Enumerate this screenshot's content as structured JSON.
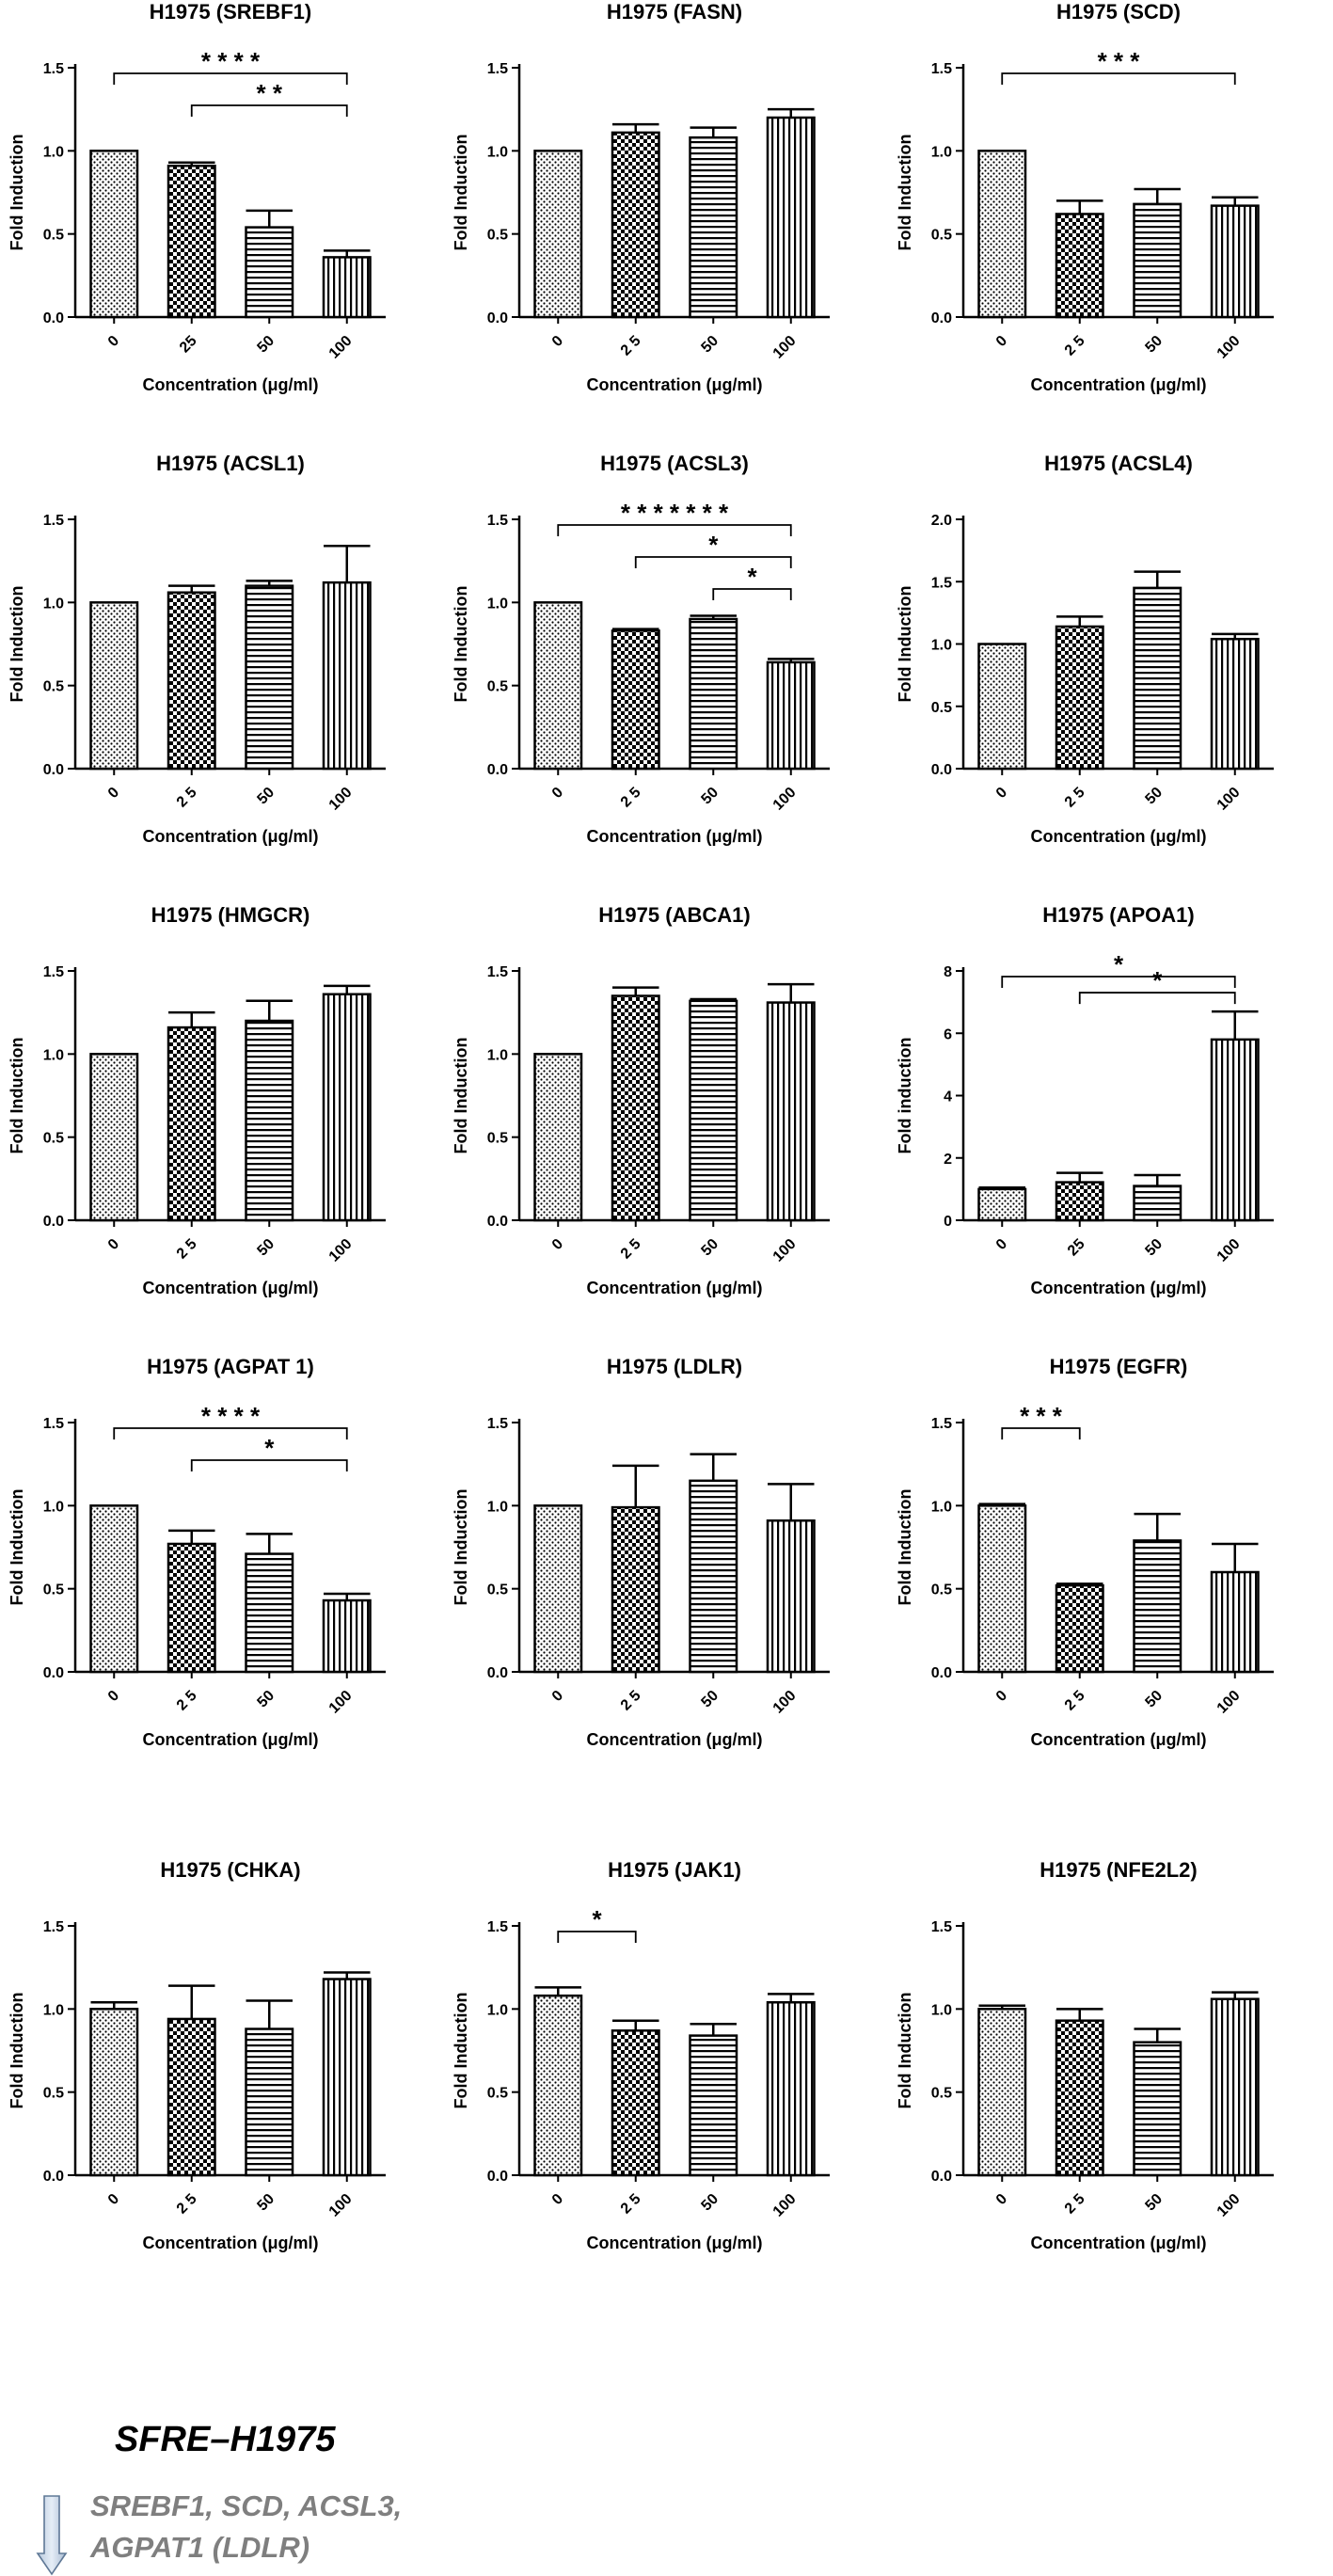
{
  "chart_data": [
    {
      "type": "bar",
      "title": "H1975  (SREBF1)",
      "xlabel": "Concentration (μg/ml)",
      "ylabel": "Fold Induction",
      "categories": [
        "0",
        "25",
        "50",
        "100"
      ],
      "values": [
        1.0,
        0.91,
        0.54,
        0.36
      ],
      "errors": [
        0,
        0.02,
        0.1,
        0.04
      ],
      "ylim": [
        0,
        1.5
      ],
      "yticks": [
        "0.0",
        "0.5",
        "1.0",
        "1.5"
      ],
      "brackets": [
        {
          "from": 0,
          "to": 3,
          "label": "*     * * *"
        },
        {
          "from": 1,
          "to": 3,
          "label": "* *"
        }
      ]
    },
    {
      "type": "bar",
      "title": "H1975 (FASN)",
      "xlabel": "Concentration (μg/ml)",
      "ylabel": "Fold Induction",
      "categories": [
        "0",
        "2 5",
        "50",
        "100"
      ],
      "values": [
        1.0,
        1.11,
        1.08,
        1.2
      ],
      "errors": [
        0,
        0.05,
        0.06,
        0.05
      ],
      "ylim": [
        0,
        1.5
      ],
      "yticks": [
        "0.0",
        "0.5",
        "1.0",
        "1.5"
      ],
      "brackets": []
    },
    {
      "type": "bar",
      "title": "H1975 (SCD)",
      "xlabel": "Concentration (μg/ml)",
      "ylabel": "Fold Induction",
      "categories": [
        "0",
        "2 5",
        "50",
        "100"
      ],
      "values": [
        1.0,
        0.62,
        0.68,
        0.67
      ],
      "errors": [
        0,
        0.08,
        0.09,
        0.05
      ],
      "ylim": [
        0,
        1.5
      ],
      "yticks": [
        "0.0",
        "0.5",
        "1.0",
        "1.5"
      ],
      "brackets": [
        {
          "from": 0,
          "to": 3,
          "label": "*           * *"
        }
      ]
    },
    {
      "type": "bar",
      "title": "H1975 (ACSL1)",
      "xlabel": "Concentration (μg/ml)",
      "ylabel": "Fold Induction",
      "categories": [
        "0",
        "2 5",
        "50",
        "100"
      ],
      "values": [
        1.0,
        1.06,
        1.1,
        1.12
      ],
      "errors": [
        0,
        0.04,
        0.03,
        0.22
      ],
      "ylim": [
        0,
        1.5
      ],
      "yticks": [
        "0.0",
        "0.5",
        "1.0",
        "1.5"
      ],
      "brackets": []
    },
    {
      "type": "bar",
      "title": "H1975 (ACSL3)",
      "xlabel": "Concentration (μg/ml)",
      "ylabel": "Fold Induction",
      "categories": [
        "0",
        "2 5",
        "50",
        "100"
      ],
      "values": [
        1.0,
        0.83,
        0.9,
        0.64
      ],
      "errors": [
        0,
        0.01,
        0.02,
        0.02
      ],
      "ylim": [
        0,
        1.5
      ],
      "yticks": [
        "0.0",
        "0.5",
        "1.0",
        "1.5"
      ],
      "brackets": [
        {
          "from": 0,
          "to": 3,
          "label": "* * *     *     * * *"
        },
        {
          "from": 1,
          "to": 3,
          "label": "*"
        },
        {
          "from": 2,
          "to": 3,
          "label": "*"
        }
      ]
    },
    {
      "type": "bar",
      "title": "H1975 (ACSL4)",
      "xlabel": "Concentration (μg/ml)",
      "ylabel": "Fold Induction",
      "categories": [
        "0",
        "2 5",
        "50",
        "100"
      ],
      "values": [
        1.0,
        1.14,
        1.45,
        1.04
      ],
      "errors": [
        0,
        0.08,
        0.13,
        0.04
      ],
      "ylim": [
        0,
        2.0
      ],
      "yticks": [
        "0.0",
        "0.5",
        "1.0",
        "1.5",
        "2.0"
      ],
      "brackets": []
    },
    {
      "type": "bar",
      "title": "H1975  (HMGCR)",
      "xlabel": "Concentration (μg/ml)",
      "ylabel": "Fold Induction",
      "categories": [
        "0",
        "2 5",
        "50",
        "100"
      ],
      "values": [
        1.0,
        1.16,
        1.2,
        1.36
      ],
      "errors": [
        0,
        0.09,
        0.12,
        0.05
      ],
      "ylim": [
        0,
        1.5
      ],
      "yticks": [
        "0.0",
        "0.5",
        "1.0",
        "1.5"
      ],
      "brackets": []
    },
    {
      "type": "bar",
      "title": "H1975 (ABCA1)",
      "xlabel": "Concentration (μg/ml)",
      "ylabel": "Fold Induction",
      "categories": [
        "0",
        "2 5",
        "50",
        "100"
      ],
      "values": [
        1.0,
        1.35,
        1.32,
        1.31
      ],
      "errors": [
        0,
        0.05,
        0.01,
        0.11
      ],
      "ylim": [
        0,
        1.5
      ],
      "yticks": [
        "0.0",
        "0.5",
        "1.0",
        "1.5"
      ],
      "brackets": []
    },
    {
      "type": "bar",
      "title": "H1975 (APOA1)",
      "xlabel": "Concentration (μg/ml)",
      "ylabel": "Fold induction",
      "categories": [
        "0",
        "25",
        "50",
        "100"
      ],
      "values": [
        1.0,
        1.22,
        1.1,
        5.8
      ],
      "errors": [
        0.05,
        0.3,
        0.35,
        0.9
      ],
      "ylim": [
        0,
        8
      ],
      "yticks": [
        "0",
        "2",
        "4",
        "6",
        "8"
      ],
      "brackets": [
        {
          "from": 0,
          "to": 3,
          "label": "*"
        },
        {
          "from": 1,
          "to": 3,
          "label": "*"
        }
      ]
    },
    {
      "type": "bar",
      "title": "H1975 (AGPAT 1)",
      "xlabel": "Concentration (μg/ml)",
      "ylabel": "Fold Induction",
      "categories": [
        "0",
        "2 5",
        "50",
        "100"
      ],
      "values": [
        1.0,
        0.77,
        0.71,
        0.43
      ],
      "errors": [
        0,
        0.08,
        0.12,
        0.04
      ],
      "ylim": [
        0,
        1.5
      ],
      "yticks": [
        "0.0",
        "0.5",
        "1.0",
        "1.5"
      ],
      "brackets": [
        {
          "from": 0,
          "to": 3,
          "label": "*           * * *"
        },
        {
          "from": 1,
          "to": 3,
          "label": "*"
        }
      ]
    },
    {
      "type": "bar",
      "title": "H1975 (LDLR)",
      "xlabel": "Concentration (μg/ml)",
      "ylabel": "Fold Induction",
      "categories": [
        "0",
        "2 5",
        "50",
        "100"
      ],
      "values": [
        1.0,
        0.99,
        1.15,
        0.91
      ],
      "errors": [
        0,
        0.25,
        0.16,
        0.22
      ],
      "ylim": [
        0,
        1.5
      ],
      "yticks": [
        "0.0",
        "0.5",
        "1.0",
        "1.5"
      ],
      "brackets": []
    },
    {
      "type": "bar",
      "title": "H1975  (EGFR)",
      "xlabel": "Concentration (μg/ml)",
      "ylabel": "Fold Induction",
      "categories": [
        "0",
        "2 5",
        "50",
        "100"
      ],
      "values": [
        1.0,
        0.52,
        0.79,
        0.6
      ],
      "errors": [
        0.01,
        0.01,
        0.16,
        0.17
      ],
      "ylim": [
        0,
        1.5
      ],
      "yticks": [
        "0.0",
        "0.5",
        "1.0",
        "1.5"
      ],
      "brackets": [
        {
          "from": 0,
          "to": 1,
          "label": "* * *"
        }
      ]
    },
    {
      "type": "bar",
      "title": "H1975 (CHKA)",
      "xlabel": "Concentration (μg/ml)",
      "ylabel": "Fold Induction",
      "categories": [
        "0",
        "2 5",
        "50",
        "100"
      ],
      "values": [
        1.0,
        0.94,
        0.88,
        1.18
      ],
      "errors": [
        0.04,
        0.2,
        0.17,
        0.04
      ],
      "ylim": [
        0,
        1.5
      ],
      "yticks": [
        "0.0",
        "0.5",
        "1.0",
        "1.5"
      ],
      "brackets": []
    },
    {
      "type": "bar",
      "title": "H1975 (JAK1)",
      "xlabel": "Concentration (μg/ml)",
      "ylabel": "Fold Induction",
      "categories": [
        "0",
        "2 5",
        "50",
        "100"
      ],
      "values": [
        1.08,
        0.87,
        0.84,
        1.04
      ],
      "errors": [
        0.05,
        0.06,
        0.07,
        0.05
      ],
      "ylim": [
        0,
        1.5
      ],
      "yticks": [
        "0.0",
        "0.5",
        "1.0",
        "1.5"
      ],
      "brackets": [
        {
          "from": 0,
          "to": 1,
          "label": "*"
        }
      ]
    },
    {
      "type": "bar",
      "title": "H1975 (NFE2L2)",
      "xlabel": "Concentration (μg/ml)",
      "ylabel": "Fold Induction",
      "categories": [
        "0",
        "2 5",
        "50",
        "100"
      ],
      "values": [
        1.0,
        0.93,
        0.8,
        1.06
      ],
      "errors": [
        0.02,
        0.07,
        0.08,
        0.04
      ],
      "ylim": [
        0,
        1.5
      ],
      "yticks": [
        "0.0",
        "0.5",
        "1.0",
        "1.5"
      ],
      "brackets": []
    }
  ],
  "summary": {
    "title": "SFRE–H1975",
    "line1": "SREBF1, SCD, ACSL3,",
    "line2": "AGPAT1 (LDLR)"
  }
}
